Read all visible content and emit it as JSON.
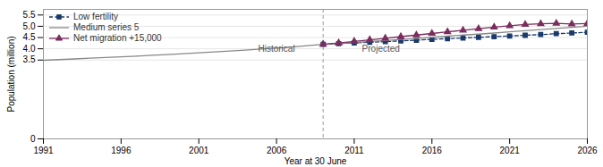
{
  "chart_data": {
    "type": "line",
    "xlabel": "Year at 30 June",
    "ylabel": "Population (million)",
    "x": [
      1991,
      1992,
      1993,
      1994,
      1995,
      1996,
      1997,
      1998,
      1999,
      2000,
      2001,
      2002,
      2003,
      2004,
      2005,
      2006,
      2007,
      2008,
      2009,
      2010,
      2011,
      2012,
      2013,
      2014,
      2015,
      2016,
      2017,
      2018,
      2019,
      2020,
      2021,
      2022,
      2023,
      2024,
      2025,
      2026
    ],
    "xlim": [
      1991,
      2026
    ],
    "xticks": [
      1991,
      1996,
      2001,
      2006,
      2011,
      2016,
      2021,
      2026
    ],
    "ylim": [
      0,
      5.75
    ],
    "yticks": [
      0,
      3.5,
      {
        "value": 4.0,
        "label": "4.0"
      },
      4.5,
      {
        "value": 5.0,
        "label": "5.0"
      },
      5.5
    ],
    "grid": true,
    "legend": "upper left",
    "series": [
      {
        "color": "#888888",
        "line_style": "solid",
        "values": [
          3.49,
          3.52,
          3.55,
          3.58,
          3.61,
          3.64,
          3.67,
          3.71,
          3.74,
          3.78,
          3.82,
          3.86,
          3.9,
          3.94,
          3.99,
          4.03,
          4.08,
          4.14,
          4.2,
          null,
          null,
          null,
          null,
          null,
          null,
          null,
          null,
          null,
          null,
          null,
          null,
          null,
          null,
          null,
          null,
          null
        ]
      },
      {
        "name": "Low fertility",
        "color": "#1a3a6b",
        "line_style": "dashed",
        "marker": "square",
        "values": [
          null,
          null,
          null,
          null,
          null,
          null,
          null,
          null,
          null,
          null,
          null,
          null,
          null,
          null,
          null,
          null,
          null,
          null,
          4.2,
          4.23,
          4.26,
          4.29,
          4.32,
          4.35,
          4.38,
          4.42,
          4.45,
          4.48,
          4.51,
          4.54,
          4.57,
          4.6,
          4.63,
          4.67,
          4.7,
          4.73
        ]
      },
      {
        "name": "Medium series 5",
        "color": "#888888",
        "line_style": "solid",
        "values": [
          null,
          null,
          null,
          null,
          null,
          null,
          null,
          null,
          null,
          null,
          null,
          null,
          null,
          null,
          null,
          null,
          null,
          null,
          4.2,
          4.24,
          4.28,
          4.33,
          4.37,
          4.42,
          4.46,
          4.51,
          4.56,
          4.61,
          4.65,
          4.7,
          4.75,
          4.8,
          4.85,
          4.9,
          4.95,
          5.0
        ]
      },
      {
        "name": "Net migration +15,000",
        "color": "#7b2d5e",
        "line_style": "solid",
        "marker": "triangle",
        "values": [
          null,
          null,
          null,
          null,
          null,
          null,
          null,
          null,
          null,
          null,
          null,
          null,
          null,
          null,
          null,
          null,
          null,
          null,
          4.2,
          4.26,
          4.33,
          4.4,
          4.47,
          4.54,
          4.61,
          4.68,
          4.75,
          4.82,
          4.89,
          4.96,
          5.02,
          5.08,
          5.11,
          5.13,
          5.1,
          5.12
        ]
      }
    ],
    "annotations": [
      {
        "text": "Historical",
        "x": 2006.0,
        "y": 3.77
      },
      {
        "text": "Projected",
        "x": 2011.5,
        "y": 3.77
      }
    ]
  }
}
